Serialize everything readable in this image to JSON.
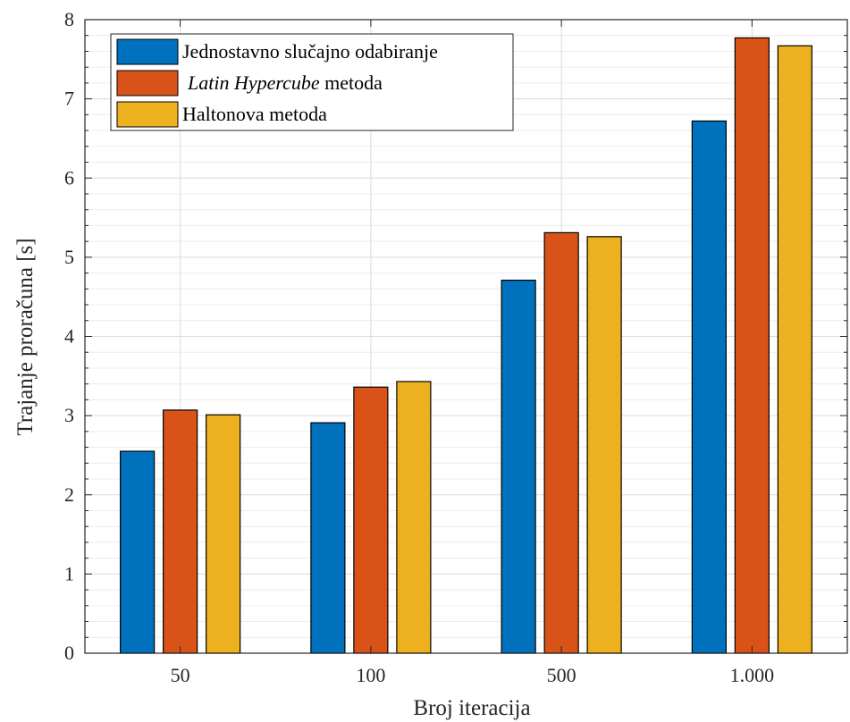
{
  "chart_data": {
    "type": "bar",
    "xlabel": "Broj iteracija",
    "ylabel": "Trajanje proračuna [s]",
    "categories": [
      "50",
      "100",
      "500",
      "1.000"
    ],
    "ylim": [
      0,
      8
    ],
    "yticks": [
      "0",
      "1",
      "2",
      "3",
      "4",
      "5",
      "6",
      "7",
      "8"
    ],
    "grid": "major and minor",
    "legend_position": "top-left",
    "series": [
      {
        "name": "Jednostavno slučajno odabiranje",
        "color": "#0072BD",
        "values": [
          2.55,
          2.91,
          4.71,
          6.72
        ]
      },
      {
        "name_italic": "Latin Hypercube",
        "name_rest": " metoda",
        "color": "#D95319",
        "values": [
          3.07,
          3.36,
          5.31,
          7.77
        ]
      },
      {
        "name": "Haltonova metoda",
        "color": "#EDB120",
        "values": [
          3.01,
          3.43,
          5.26,
          7.67
        ]
      }
    ]
  }
}
